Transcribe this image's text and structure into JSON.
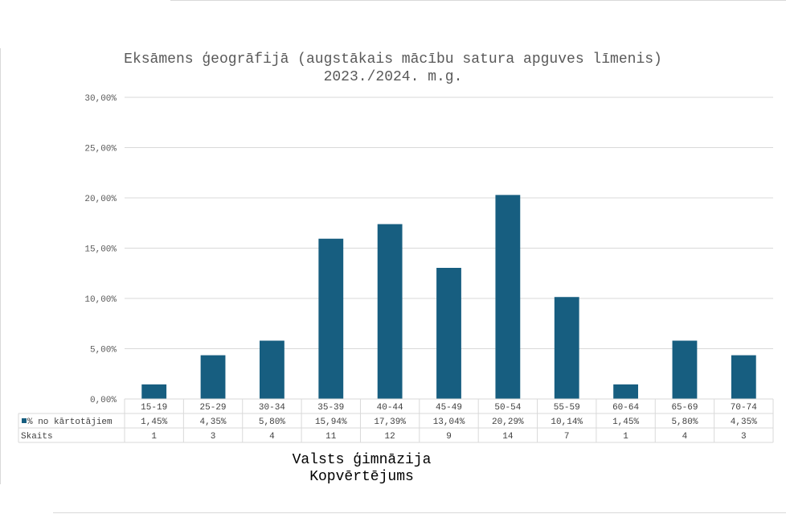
{
  "chart_data": {
    "type": "bar",
    "title": "Eksāmens ģeogrāfijā (augstākais mācību satura apguves līmenis)",
    "subtitle": "2023./2024. m.g.",
    "categories": [
      "15-19",
      "25-29",
      "30-34",
      "35-39",
      "40-44",
      "45-49",
      "50-54",
      "55-59",
      "60-64",
      "65-69",
      "70-74"
    ],
    "series": [
      {
        "name": "% no kārtotājiem",
        "values": [
          1.45,
          4.35,
          5.8,
          15.94,
          17.39,
          13.04,
          20.29,
          10.14,
          1.45,
          5.8,
          4.35
        ],
        "color": "#175e80"
      }
    ],
    "table_rows": [
      {
        "label": "% no kārtotājiem",
        "cells": [
          "1,45%",
          "4,35%",
          "5,80%",
          "15,94%",
          "17,39%",
          "13,04%",
          "20,29%",
          "10,14%",
          "1,45%",
          "5,80%",
          "4,35%"
        ]
      },
      {
        "label": "Skaits",
        "cells": [
          "1",
          "3",
          "4",
          "11",
          "12",
          "9",
          "14",
          "7",
          "1",
          "4",
          "3"
        ]
      }
    ],
    "y_ticks": [
      "0,00%",
      "5,00%",
      "10,00%",
      "15,00%",
      "20,00%",
      "25,00%",
      "30,00%"
    ],
    "ylim": [
      0,
      30
    ],
    "grid": true,
    "xlabel": "Valsts ģimnāzija",
    "xlabel2": "Kopvērtējums"
  }
}
